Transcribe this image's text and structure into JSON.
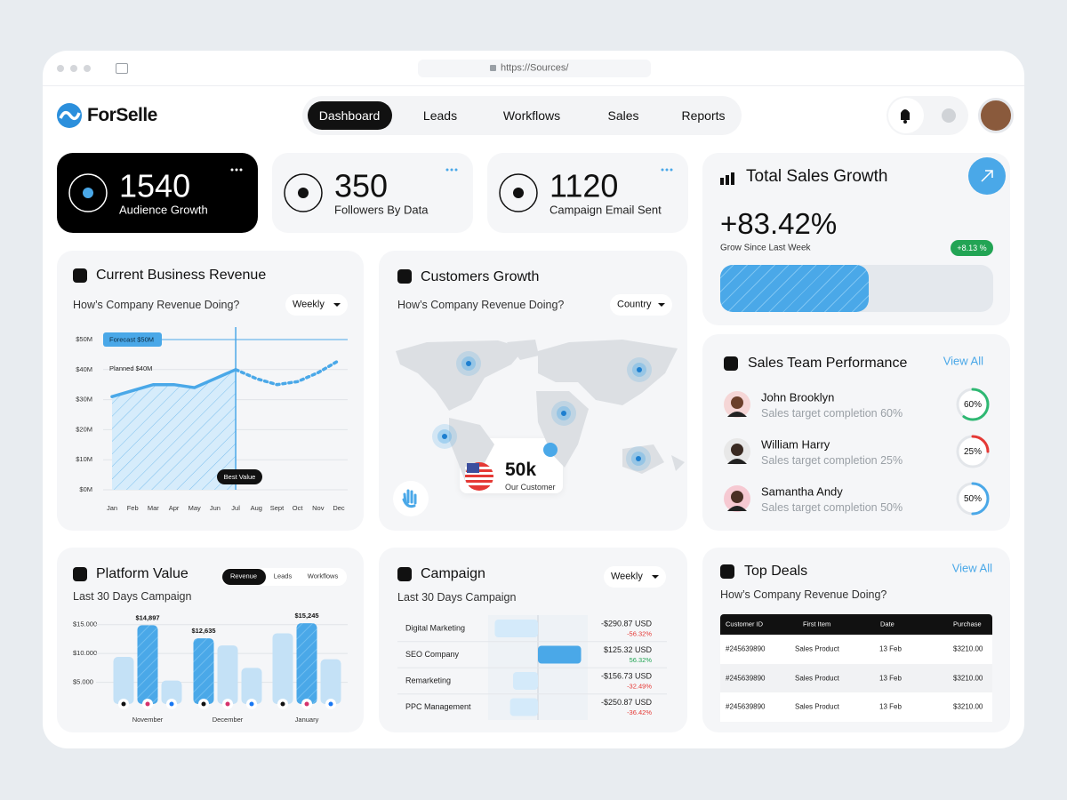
{
  "browser": {
    "url": "https://Sources/"
  },
  "header": {
    "logo": "ForSelle",
    "nav": [
      "Dashboard",
      "Leads",
      "Workflows",
      "Sales",
      "Reports"
    ]
  },
  "stats": [
    {
      "value": "1540",
      "label": "Audience Growth"
    },
    {
      "value": "350",
      "label": "Followers By Data"
    },
    {
      "value": "1120",
      "label": "Campaign Email Sent"
    }
  ],
  "total_sales": {
    "title": "Total Sales Growth",
    "value": "+83.42%",
    "caption": "Grow Since Last Week",
    "badge": "+8.13 %"
  },
  "revenue": {
    "title": "Current Business Revenue",
    "subtitle": "How’s Company Revenue Doing?",
    "filter": "Weekly",
    "chart_data": {
      "type": "line",
      "categories": [
        "Jan",
        "Feb",
        "Mar",
        "Apr",
        "May",
        "Jun",
        "Jul",
        "Aug",
        "Sept",
        "Oct",
        "Nov",
        "Dec"
      ],
      "series": [
        {
          "color": "#4aa8e8",
          "style": "solid",
          "values": [
            31,
            33,
            35,
            35,
            34,
            37,
            40,
            null,
            null,
            null,
            null,
            null
          ]
        },
        {
          "color": "#4aa8e8",
          "style": "dotted",
          "values": [
            null,
            null,
            null,
            null,
            null,
            null,
            40,
            37,
            35,
            36,
            39,
            43
          ]
        }
      ],
      "ylim": [
        0,
        50
      ],
      "yticks": [
        {
          "value": 0,
          "label": "$0M"
        },
        {
          "value": 10,
          "label": "$10M"
        },
        {
          "value": 20,
          "label": "$20M"
        },
        {
          "value": 30,
          "label": "$30M"
        },
        {
          "value": 40,
          "label": "$40M"
        },
        {
          "value": 50,
          "label": "$50M"
        }
      ],
      "grid": true,
      "annotations": [
        "Forecast $50M",
        "Planned $40M",
        "Best Value"
      ]
    }
  },
  "customers": {
    "title": "Customers Growth",
    "subtitle": "How’s Company Revenue Doing?",
    "filter": "Country",
    "callout": {
      "country": "USA",
      "value": "50k",
      "label": "Our Customer"
    }
  },
  "team": {
    "title": "Sales Team Performance",
    "link": "View All",
    "members": [
      {
        "name": "John Brooklyn",
        "detail": "Sales target completion 60%",
        "value": 60,
        "value_label": "60%",
        "color": "#2eb872"
      },
      {
        "name": "William Harry",
        "detail": "Sales target completion 25%",
        "value": 25,
        "value_label": "25%",
        "color": "#e53935"
      },
      {
        "name": "Samantha Andy",
        "detail": "Sales target completion 50%",
        "value": 50,
        "value_label": "50%",
        "color": "#4aa8e8"
      }
    ]
  },
  "platform": {
    "title": "Platform Value",
    "tabs": [
      "Revenue",
      "Leads",
      "Workflows"
    ],
    "subtitle": "Last 30  Days Campaign",
    "chart_data": {
      "type": "bar",
      "categories": [
        "November",
        "December",
        "January"
      ],
      "series": [
        {
          "colors": [
            "#c4e1f6",
            "#4aa8e8",
            "#c4e1f6"
          ],
          "values": [
            9400,
            12635,
            13500
          ],
          "value_labels": [
            null,
            "$12,635",
            null
          ]
        },
        {
          "colors": [
            "#4aa8e8",
            "#c4e1f6",
            "#4aa8e8"
          ],
          "values": [
            14897,
            11400,
            15245
          ],
          "value_labels": [
            "$14,897",
            null,
            "$15,245"
          ]
        },
        {
          "colors": [
            "#c4e1f6",
            "#c4e1f6",
            "#c4e1f6"
          ],
          "values": [
            5300,
            7500,
            9000
          ],
          "value_labels": [
            null,
            null,
            null
          ]
        }
      ],
      "ylim": [
        0,
        16500
      ],
      "yticks": [
        {
          "value": 5000,
          "label": "$5.000"
        },
        {
          "value": 10000,
          "label": "$10.000"
        },
        {
          "value": 15000,
          "label": "$15.000"
        }
      ],
      "grid": true
    }
  },
  "campaign": {
    "title": "Campaign",
    "filter": "Weekly",
    "subtitle": "Last 30  Days Campaign",
    "chart_data": {
      "type": "bar",
      "orientation": "horizontal",
      "categories": [
        "Digital Marketing",
        "SEO Company",
        "Remarketing",
        "PPC Management"
      ],
      "values": [
        -56.32,
        56.32,
        -32.49,
        -36.42
      ],
      "value_labels": [
        "-56.32%",
        "56.32%",
        "-32.49%",
        "-36.42%"
      ],
      "amounts": [
        "-$290.87 USD",
        "$125.32 USD",
        "-$156.73 USD",
        "-$250.87 USD"
      ],
      "xlim": [
        -65,
        65
      ]
    }
  },
  "deals": {
    "title": "Top Deals",
    "link": "View All",
    "subtitle": "How’s Company Revenue Doing?",
    "table": {
      "header": [
        "Customer ID",
        "First Item",
        "Date",
        "Purchase"
      ],
      "rows": [
        [
          "#245639890",
          "Sales Product",
          "13 Feb",
          "$3210.00"
        ],
        [
          "#245639890",
          "Sales Product",
          "13 Feb",
          "$3210.00"
        ],
        [
          "#245639890",
          "Sales Product",
          "13 Feb",
          "$3210.00"
        ]
      ]
    }
  }
}
